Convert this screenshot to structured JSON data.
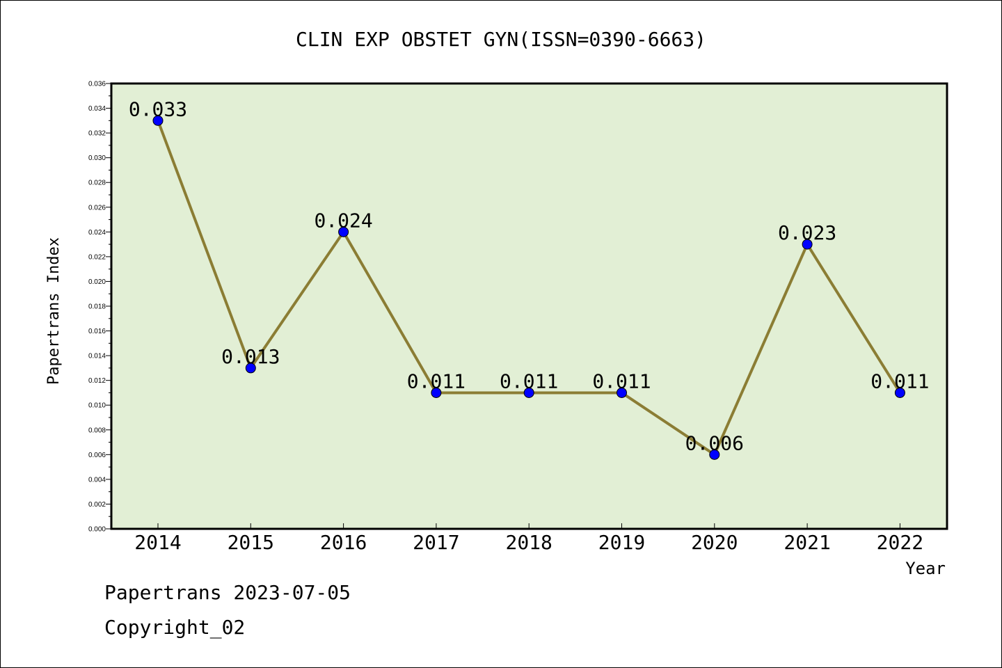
{
  "chart_data": {
    "type": "line",
    "title": "CLIN EXP OBSTET GYN(ISSN=0390-6663)",
    "xlabel": "Year",
    "ylabel": "Papertrans Index",
    "categories": [
      "2014",
      "2015",
      "2016",
      "2017",
      "2018",
      "2019",
      "2020",
      "2021",
      "2022"
    ],
    "values": [
      0.033,
      0.013,
      0.024,
      0.011,
      0.011,
      0.011,
      0.006,
      0.023,
      0.011
    ],
    "data_labels": [
      "0.033",
      "0.013",
      "0.024",
      "0.011",
      "0.011",
      "0.011",
      "0.006",
      "0.023",
      "0.011"
    ],
    "ylim": [
      0,
      0.036
    ],
    "yticks": [
      "0.000",
      "0.002",
      "0.004",
      "0.006",
      "0.008",
      "0.010",
      "0.012",
      "0.014",
      "0.016",
      "0.018",
      "0.020",
      "0.022",
      "0.024",
      "0.026",
      "0.028",
      "0.030",
      "0.032",
      "0.034",
      "0.036"
    ],
    "grid": false,
    "colors": {
      "plot_background": "#e2efd5",
      "line": "#8b7d34",
      "marker": "#0000ff"
    }
  },
  "footer": {
    "line1": "Papertrans 2023-07-05",
    "line2": "Copyright_02"
  }
}
